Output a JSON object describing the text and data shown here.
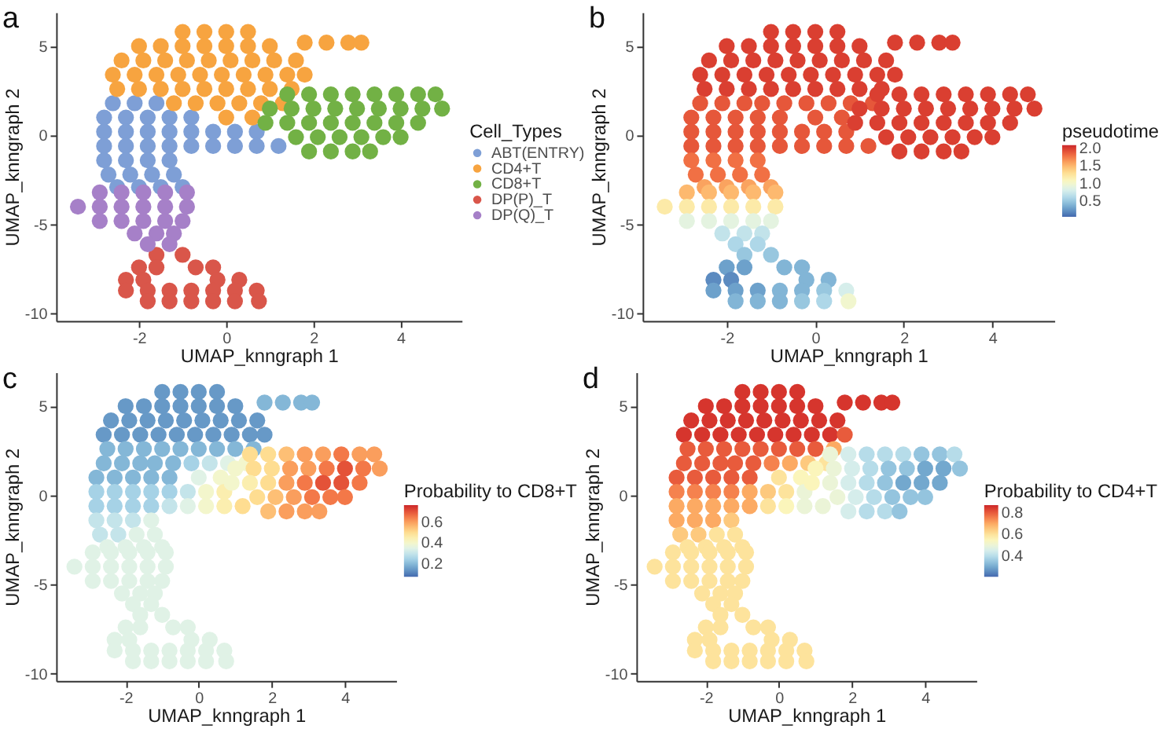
{
  "chart_data": [
    {
      "type": "scatter",
      "title": "a",
      "xlabel": "UMAP_knngraph 1",
      "ylabel": "UMAP_knngraph 2",
      "xlim": [
        -3.9,
        5.4
      ],
      "ylim": [
        -10.4,
        6.9
      ],
      "xticks": [
        -2,
        0,
        2,
        4
      ],
      "yticks": [
        -10,
        -5,
        0,
        5
      ],
      "marker": "circle",
      "legend": "right",
      "legend_title": "Cell_Types",
      "series": [
        {
          "name": "ABT(ENTRY)",
          "color": "#7e9fd6",
          "x": [
            -2.6,
            -2.1,
            -1.6,
            -2.8,
            -2.3,
            -1.8,
            -1.3,
            -0.8,
            -2.8,
            -2.3,
            -1.8,
            -1.3,
            -0.8,
            -0.3,
            0.2,
            0.7,
            -2.8,
            -2.3,
            -1.8,
            -1.3,
            -0.8,
            -0.3,
            0.2,
            0.7,
            1.2,
            -2.8,
            -2.3,
            -1.8,
            -1.3,
            -2.7,
            -2.2,
            -1.7,
            -1.2,
            -2.5,
            -2.0,
            -1.5,
            -1.0
          ],
          "values": [
            1.8,
            1.8,
            1.8,
            1.0,
            1.0,
            1.0,
            1.0,
            1.0,
            0.2,
            0.2,
            0.2,
            0.2,
            0.2,
            0.2,
            0.2,
            0.2,
            -0.6,
            -0.6,
            -0.6,
            -0.6,
            -0.6,
            -0.6,
            -0.6,
            -0.6,
            -0.6,
            -1.4,
            -1.4,
            -1.4,
            -1.4,
            -2.2,
            -2.2,
            -2.2,
            -2.2,
            -2.9,
            -2.9,
            -2.9,
            -2.9
          ]
        },
        {
          "name": "CD4+T",
          "color": "#f7a440",
          "x": [
            -1.0,
            -0.5,
            0.0,
            0.5,
            -2.0,
            -1.5,
            -1.0,
            -0.5,
            0.0,
            0.5,
            1.0,
            1.8,
            2.3,
            2.8,
            3.1,
            -2.4,
            -1.9,
            -1.4,
            -0.9,
            -0.4,
            0.1,
            0.6,
            1.1,
            1.6,
            -2.6,
            -2.1,
            -1.6,
            -1.1,
            -0.6,
            -0.1,
            0.4,
            0.9,
            1.4,
            1.8,
            -2.5,
            -2.0,
            -1.5,
            -1.0,
            -0.5,
            0.0,
            0.5,
            1.0,
            1.5,
            -1.2,
            -0.7,
            -0.2,
            0.3,
            0.8,
            1.3,
            0.0,
            0.6
          ],
          "values": [
            5.8,
            5.8,
            5.8,
            5.8,
            5.0,
            5.0,
            5.0,
            5.0,
            5.0,
            5.0,
            5.0,
            5.2,
            5.2,
            5.2,
            5.2,
            4.2,
            4.2,
            4.2,
            4.2,
            4.2,
            4.2,
            4.2,
            4.2,
            4.2,
            3.4,
            3.4,
            3.4,
            3.4,
            3.4,
            3.4,
            3.4,
            3.4,
            3.4,
            3.4,
            2.6,
            2.6,
            2.6,
            2.6,
            2.6,
            2.6,
            2.6,
            2.6,
            2.6,
            1.8,
            1.8,
            1.8,
            1.8,
            1.8,
            1.8,
            1.0,
            1.0
          ]
        },
        {
          "name": "CD8+T",
          "color": "#72b145",
          "x": [
            1.4,
            1.9,
            2.4,
            2.9,
            3.4,
            3.9,
            4.4,
            4.8,
            1.0,
            1.5,
            2.0,
            2.5,
            3.0,
            3.5,
            4.0,
            4.5,
            4.95,
            0.9,
            1.4,
            1.9,
            2.4,
            2.9,
            3.4,
            3.9,
            4.4,
            1.6,
            2.1,
            2.6,
            3.1,
            3.6,
            4.0,
            1.9,
            2.4,
            2.9,
            3.3
          ],
          "values": [
            2.3,
            2.3,
            2.3,
            2.3,
            2.3,
            2.3,
            2.3,
            2.3,
            1.5,
            1.5,
            1.5,
            1.5,
            1.5,
            1.5,
            1.5,
            1.5,
            1.5,
            0.7,
            0.7,
            0.7,
            0.7,
            0.7,
            0.7,
            0.7,
            0.7,
            -0.1,
            -0.1,
            -0.1,
            -0.1,
            -0.1,
            -0.1,
            -0.9,
            -0.9,
            -0.9,
            -0.9
          ]
        },
        {
          "name": "DP(P)_T",
          "color": "#d9564a",
          "x": [
            -1.6,
            -1.0,
            -2.0,
            -1.6,
            -0.7,
            -0.3,
            -2.3,
            -1.9,
            -0.2,
            0.3,
            -2.3,
            -1.8,
            -1.3,
            -0.8,
            -0.3,
            0.2,
            0.7,
            -1.8,
            -1.3,
            -0.8,
            -0.3,
            0.2,
            0.75
          ],
          "values": [
            -6.7,
            -6.7,
            -7.4,
            -7.4,
            -7.4,
            -7.4,
            -8.1,
            -8.1,
            -8.1,
            -8.1,
            -8.7,
            -8.7,
            -8.7,
            -8.7,
            -8.7,
            -8.7,
            -8.7,
            -9.3,
            -9.3,
            -9.3,
            -9.3,
            -9.3,
            -9.3
          ]
        },
        {
          "name": "DP(Q)_T",
          "color": "#a680c8",
          "x": [
            -2.9,
            -2.4,
            -1.9,
            -1.4,
            -0.9,
            -3.4,
            -2.9,
            -2.4,
            -1.9,
            -1.4,
            -0.9,
            -2.9,
            -2.4,
            -1.9,
            -1.4,
            -1.0,
            -2.1,
            -1.6,
            -1.2,
            -1.8,
            -1.3
          ],
          "values": [
            -3.2,
            -3.2,
            -3.2,
            -3.2,
            -3.2,
            -4.0,
            -4.0,
            -4.0,
            -4.0,
            -4.0,
            -4.0,
            -4.8,
            -4.8,
            -4.8,
            -4.8,
            -4.8,
            -5.5,
            -5.5,
            -5.5,
            -6.1,
            -6.1
          ]
        }
      ]
    },
    {
      "type": "scatter",
      "title": "b",
      "xlabel": "UMAP_knngraph 1",
      "ylabel": "UMAP_knngraph 2",
      "xlim": [
        -3.9,
        5.4
      ],
      "ylim": [
        -10.4,
        6.9
      ],
      "xticks": [
        -2,
        0,
        2,
        4
      ],
      "yticks": [
        -10,
        -5,
        0,
        5
      ],
      "marker": "circle",
      "clabel": "pseudotime",
      "clim": [
        0.05,
        2.1
      ],
      "cticks": [
        0.5,
        {
          "value": 1,
          "label": "1.0"
        },
        1.5,
        {
          "value": 2,
          "label": "2.0"
        }
      ],
      "x": [
        -1.0,
        -0.5,
        0.0,
        0.5,
        -2.0,
        -1.5,
        -1.0,
        -0.5,
        0.0,
        0.5,
        1.0,
        1.8,
        2.3,
        2.8,
        3.1,
        -2.4,
        -1.9,
        -1.4,
        -0.9,
        -0.4,
        0.1,
        0.6,
        1.1,
        1.6,
        -2.6,
        -2.1,
        -1.6,
        -1.1,
        -0.6,
        -0.1,
        0.4,
        0.9,
        1.4,
        1.8,
        -2.5,
        -2.0,
        -1.5,
        -1.0,
        -0.5,
        0.0,
        0.5,
        1.0,
        1.5,
        -1.2,
        -0.7,
        -0.2,
        0.3,
        0.8,
        1.3,
        0.0,
        0.6,
        -2.6,
        -2.1,
        -1.6,
        -2.8,
        -2.3,
        -1.8,
        -1.3,
        -0.8,
        -2.8,
        -2.3,
        -1.8,
        -1.3,
        -0.8,
        -0.3,
        0.2,
        0.7,
        -2.8,
        -2.3,
        -1.8,
        -1.3,
        -0.8,
        -0.3,
        0.2,
        0.7,
        1.2,
        -2.8,
        -2.3,
        -1.8,
        -1.3,
        -2.7,
        -2.2,
        -1.7,
        -1.2,
        -2.5,
        -2.0,
        -1.5,
        -1.0,
        1.4,
        1.9,
        2.4,
        2.9,
        3.4,
        3.9,
        4.4,
        4.8,
        1.0,
        1.5,
        2.0,
        2.5,
        3.0,
        3.5,
        4.0,
        4.5,
        4.95,
        0.9,
        1.4,
        1.9,
        2.4,
        2.9,
        3.4,
        3.9,
        4.4,
        1.6,
        2.1,
        2.6,
        3.1,
        3.6,
        4.0,
        1.9,
        2.4,
        2.9,
        3.3,
        -2.9,
        -2.4,
        -1.9,
        -1.4,
        -0.9,
        -3.4,
        -2.9,
        -2.4,
        -1.9,
        -1.4,
        -0.9,
        -2.9,
        -2.4,
        -1.9,
        -1.4,
        -1.0,
        -2.1,
        -1.6,
        -1.2,
        -1.8,
        -1.3,
        -1.6,
        -1.0,
        -2.0,
        -1.6,
        -0.7,
        -0.3,
        -2.3,
        -1.9,
        -0.2,
        0.3,
        -2.3,
        -1.8,
        -1.3,
        -0.8,
        -0.3,
        0.2,
        0.7,
        -1.8,
        -1.3,
        -0.8,
        -0.3,
        0.2,
        0.75
      ],
      "values": [
        5.8,
        5.8,
        5.8,
        5.8,
        5.0,
        5.0,
        5.0,
        5.0,
        5.0,
        5.0,
        5.0,
        5.2,
        5.2,
        5.2,
        5.2,
        4.2,
        4.2,
        4.2,
        4.2,
        4.2,
        4.2,
        4.2,
        4.2,
        4.2,
        3.4,
        3.4,
        3.4,
        3.4,
        3.4,
        3.4,
        3.4,
        3.4,
        3.4,
        3.4,
        2.6,
        2.6,
        2.6,
        2.6,
        2.6,
        2.6,
        2.6,
        2.6,
        2.6,
        1.8,
        1.8,
        1.8,
        1.8,
        1.8,
        1.8,
        1.0,
        1.0,
        1.8,
        1.8,
        1.8,
        1.0,
        1.0,
        1.0,
        1.0,
        1.0,
        0.2,
        0.2,
        0.2,
        0.2,
        0.2,
        0.2,
        0.2,
        0.2,
        -0.6,
        -0.6,
        -0.6,
        -0.6,
        -0.6,
        -0.6,
        -0.6,
        -0.6,
        -0.6,
        -1.4,
        -1.4,
        -1.4,
        -1.4,
        -2.2,
        -2.2,
        -2.2,
        -2.2,
        -2.9,
        -2.9,
        -2.9,
        -2.9,
        2.3,
        2.3,
        2.3,
        2.3,
        2.3,
        2.3,
        2.3,
        2.3,
        1.5,
        1.5,
        1.5,
        1.5,
        1.5,
        1.5,
        1.5,
        1.5,
        1.5,
        0.7,
        0.7,
        0.7,
        0.7,
        0.7,
        0.7,
        0.7,
        0.7,
        -0.1,
        -0.1,
        -0.1,
        -0.1,
        -0.1,
        -0.1,
        -0.9,
        -0.9,
        -0.9,
        -0.9,
        -3.2,
        -3.2,
        -3.2,
        -3.2,
        -3.2,
        -4.0,
        -4.0,
        -4.0,
        -4.0,
        -4.0,
        -4.0,
        -4.8,
        -4.8,
        -4.8,
        -4.8,
        -4.8,
        -5.5,
        -5.5,
        -5.5,
        -6.1,
        -6.1,
        -6.7,
        -6.7,
        -7.4,
        -7.4,
        -7.4,
        -7.4,
        -8.1,
        -8.1,
        -8.1,
        -8.1,
        -8.7,
        -8.7,
        -8.7,
        -8.7,
        -8.7,
        -8.7,
        -8.7,
        -9.3,
        -9.3,
        -9.3,
        -9.3,
        -9.3,
        -9.3
      ],
      "cvalues": [
        2.0,
        2.0,
        2.0,
        2.0,
        2.0,
        2.0,
        2.0,
        2.0,
        2.0,
        2.0,
        2.0,
        2.0,
        2.0,
        2.0,
        2.0,
        2.0,
        2.0,
        2.0,
        2.0,
        2.0,
        2.0,
        2.0,
        2.0,
        2.0,
        2.0,
        2.0,
        2.0,
        2.0,
        2.0,
        2.0,
        2.0,
        2.0,
        2.0,
        2.0,
        2.0,
        2.0,
        2.0,
        2.0,
        2.0,
        2.0,
        2.0,
        2.0,
        2.0,
        1.9,
        1.9,
        1.9,
        1.9,
        1.9,
        1.9,
        1.9,
        1.9,
        1.9,
        1.9,
        1.9,
        1.9,
        1.9,
        1.9,
        1.9,
        1.9,
        1.9,
        1.9,
        1.9,
        1.9,
        1.9,
        1.9,
        1.9,
        1.9,
        1.9,
        1.9,
        1.9,
        1.9,
        1.9,
        1.9,
        1.9,
        1.9,
        1.9,
        1.8,
        1.8,
        1.8,
        1.8,
        1.8,
        1.8,
        1.8,
        1.8,
        1.6,
        1.6,
        1.6,
        1.6,
        2.0,
        2.0,
        2.0,
        2.0,
        2.0,
        2.0,
        2.0,
        2.0,
        2.0,
        2.0,
        2.0,
        2.0,
        2.0,
        2.0,
        2.0,
        2.0,
        2.0,
        2.0,
        2.0,
        2.0,
        2.0,
        2.0,
        2.0,
        2.0,
        2.0,
        2.0,
        2.0,
        2.0,
        2.0,
        2.0,
        2.0,
        2.0,
        2.0,
        2.0,
        2.0,
        1.5,
        1.5,
        1.5,
        1.5,
        1.5,
        1.2,
        1.2,
        1.2,
        1.2,
        1.2,
        1.2,
        0.9,
        0.9,
        0.9,
        0.9,
        0.9,
        0.7,
        0.7,
        0.7,
        0.6,
        0.6,
        0.5,
        0.5,
        0.3,
        0.3,
        0.4,
        0.4,
        0.2,
        0.2,
        0.4,
        0.4,
        0.3,
        0.3,
        0.3,
        0.4,
        0.4,
        0.5,
        0.8,
        0.4,
        0.4,
        0.4,
        0.5,
        0.6,
        1.0
      ]
    },
    {
      "type": "scatter",
      "title": "c",
      "xlabel": "UMAP_knngraph 1",
      "ylabel": "UMAP_knngraph 2",
      "xlim": [
        -3.9,
        5.4
      ],
      "ylim": [
        -10.4,
        6.9
      ],
      "xticks": [
        -2,
        0,
        2,
        4
      ],
      "yticks": [
        -10,
        -5,
        0,
        5
      ],
      "marker": "circle",
      "clabel": "Probability to CD8+T",
      "clim": [
        0.08,
        0.76
      ],
      "cticks": [
        0.2,
        0.4,
        0.6
      ],
      "x": [
        -1.0,
        -0.5,
        0.0,
        0.5,
        -2.0,
        -1.5,
        -1.0,
        -0.5,
        0.0,
        0.5,
        1.0,
        1.8,
        2.3,
        2.8,
        3.1,
        -2.4,
        -1.9,
        -1.4,
        -0.9,
        -0.4,
        0.1,
        0.6,
        1.1,
        1.6,
        -2.6,
        -2.1,
        -1.6,
        -1.1,
        -0.6,
        -0.1,
        0.4,
        0.9,
        1.4,
        1.8,
        -2.5,
        -2.0,
        -1.5,
        -1.0,
        -0.5,
        0.0,
        0.5,
        1.0,
        1.5,
        -1.2,
        -0.7,
        -0.2,
        0.3,
        0.8,
        1.3,
        0.0,
        0.6,
        -2.6,
        -2.1,
        -1.6,
        -2.8,
        -2.3,
        -1.8,
        -1.3,
        -0.8,
        -2.8,
        -2.3,
        -1.8,
        -1.3,
        -0.8,
        -0.3,
        0.2,
        0.7,
        -2.8,
        -2.3,
        -1.8,
        -1.3,
        -0.8,
        -0.3,
        0.2,
        0.7,
        1.2,
        -2.8,
        -2.3,
        -1.8,
        -1.3,
        -2.7,
        -2.2,
        -1.7,
        -1.2,
        -2.5,
        -2.0,
        -1.5,
        -1.0,
        1.4,
        1.9,
        2.4,
        2.9,
        3.4,
        3.9,
        4.4,
        4.8,
        1.0,
        1.5,
        2.0,
        2.5,
        3.0,
        3.5,
        4.0,
        4.5,
        4.95,
        0.9,
        1.4,
        1.9,
        2.4,
        2.9,
        3.4,
        3.9,
        4.4,
        1.6,
        2.1,
        2.6,
        3.1,
        3.6,
        4.0,
        1.9,
        2.4,
        2.9,
        3.3,
        -2.9,
        -2.4,
        -1.9,
        -1.4,
        -0.9,
        -3.4,
        -2.9,
        -2.4,
        -1.9,
        -1.4,
        -0.9,
        -2.9,
        -2.4,
        -1.9,
        -1.4,
        -1.0,
        -2.1,
        -1.6,
        -1.2,
        -1.8,
        -1.3,
        -1.6,
        -1.0,
        -2.0,
        -1.6,
        -0.7,
        -0.3,
        -2.3,
        -1.9,
        -0.2,
        0.3,
        -2.3,
        -1.8,
        -1.3,
        -0.8,
        -0.3,
        0.2,
        0.7,
        -1.8,
        -1.3,
        -0.8,
        -0.3,
        0.2,
        0.75
      ],
      "values": [
        5.8,
        5.8,
        5.8,
        5.8,
        5.0,
        5.0,
        5.0,
        5.0,
        5.0,
        5.0,
        5.0,
        5.2,
        5.2,
        5.2,
        5.2,
        4.2,
        4.2,
        4.2,
        4.2,
        4.2,
        4.2,
        4.2,
        4.2,
        4.2,
        3.4,
        3.4,
        3.4,
        3.4,
        3.4,
        3.4,
        3.4,
        3.4,
        3.4,
        3.4,
        2.6,
        2.6,
        2.6,
        2.6,
        2.6,
        2.6,
        2.6,
        2.6,
        2.6,
        1.8,
        1.8,
        1.8,
        1.8,
        1.8,
        1.8,
        1.0,
        1.0,
        1.8,
        1.8,
        1.8,
        1.0,
        1.0,
        1.0,
        1.0,
        1.0,
        0.2,
        0.2,
        0.2,
        0.2,
        0.2,
        0.2,
        0.2,
        0.2,
        -0.6,
        -0.6,
        -0.6,
        -0.6,
        -0.6,
        -0.6,
        -0.6,
        -0.6,
        -0.6,
        -1.4,
        -1.4,
        -1.4,
        -1.4,
        -2.2,
        -2.2,
        -2.2,
        -2.2,
        -2.9,
        -2.9,
        -2.9,
        -2.9,
        2.3,
        2.3,
        2.3,
        2.3,
        2.3,
        2.3,
        2.3,
        2.3,
        1.5,
        1.5,
        1.5,
        1.5,
        1.5,
        1.5,
        1.5,
        1.5,
        1.5,
        0.7,
        0.7,
        0.7,
        0.7,
        0.7,
        0.7,
        0.7,
        0.7,
        -0.1,
        -0.1,
        -0.1,
        -0.1,
        -0.1,
        -0.1,
        -0.9,
        -0.9,
        -0.9,
        -0.9,
        -3.2,
        -3.2,
        -3.2,
        -3.2,
        -3.2,
        -4.0,
        -4.0,
        -4.0,
        -4.0,
        -4.0,
        -4.0,
        -4.8,
        -4.8,
        -4.8,
        -4.8,
        -4.8,
        -5.5,
        -5.5,
        -5.5,
        -6.1,
        -6.1,
        -6.7,
        -6.7,
        -7.4,
        -7.4,
        -7.4,
        -7.4,
        -8.1,
        -8.1,
        -8.1,
        -8.1,
        -8.7,
        -8.7,
        -8.7,
        -8.7,
        -8.7,
        -8.7,
        -8.7,
        -9.3,
        -9.3,
        -9.3,
        -9.3,
        -9.3,
        -9.3
      ],
      "cvalues": [
        0.15,
        0.15,
        0.15,
        0.15,
        0.15,
        0.15,
        0.15,
        0.15,
        0.15,
        0.15,
        0.15,
        0.2,
        0.2,
        0.2,
        0.2,
        0.15,
        0.15,
        0.15,
        0.15,
        0.15,
        0.15,
        0.15,
        0.15,
        0.15,
        0.15,
        0.15,
        0.15,
        0.15,
        0.15,
        0.15,
        0.15,
        0.15,
        0.15,
        0.15,
        0.2,
        0.2,
        0.2,
        0.2,
        0.2,
        0.2,
        0.2,
        0.2,
        0.2,
        0.2,
        0.2,
        0.25,
        0.3,
        0.35,
        0.4,
        0.35,
        0.4,
        0.2,
        0.2,
        0.2,
        0.2,
        0.2,
        0.2,
        0.2,
        0.2,
        0.25,
        0.25,
        0.25,
        0.25,
        0.25,
        0.3,
        0.4,
        0.45,
        0.25,
        0.25,
        0.25,
        0.25,
        0.3,
        0.35,
        0.4,
        0.45,
        0.5,
        0.3,
        0.3,
        0.3,
        0.35,
        0.3,
        0.3,
        0.35,
        0.35,
        0.35,
        0.35,
        0.35,
        0.35,
        0.5,
        0.5,
        0.55,
        0.6,
        0.6,
        0.65,
        0.6,
        0.6,
        0.4,
        0.5,
        0.5,
        0.6,
        0.6,
        0.65,
        0.7,
        0.65,
        0.6,
        0.4,
        0.45,
        0.5,
        0.6,
        0.65,
        0.7,
        0.7,
        0.65,
        0.5,
        0.55,
        0.6,
        0.65,
        0.65,
        0.65,
        0.55,
        0.6,
        0.6,
        0.6,
        0.35,
        0.35,
        0.35,
        0.35,
        0.35,
        0.35,
        0.35,
        0.35,
        0.35,
        0.35,
        0.35,
        0.35,
        0.35,
        0.35,
        0.35,
        0.35,
        0.35,
        0.35,
        0.35,
        0.35,
        0.35,
        0.35,
        0.35,
        0.35,
        0.35,
        0.35,
        0.35,
        0.35,
        0.35,
        0.35,
        0.35,
        0.35,
        0.35,
        0.35,
        0.35,
        0.35,
        0.35,
        0.35,
        0.35,
        0.35,
        0.35,
        0.35,
        0.35,
        0.35
      ]
    },
    {
      "type": "scatter",
      "title": "d",
      "xlabel": "UMAP_knngraph 1",
      "ylabel": "UMAP_knngraph 2",
      "xlim": [
        -3.9,
        5.4
      ],
      "ylim": [
        -10.4,
        6.9
      ],
      "xticks": [
        -2,
        0,
        2,
        4
      ],
      "yticks": [
        -10,
        -5,
        0,
        5
      ],
      "marker": "circle",
      "clabel": "Probability to CD4+T",
      "clim": [
        0.21,
        0.87
      ],
      "cticks": [
        0.4,
        0.6,
        0.8
      ],
      "x": [
        -1.0,
        -0.5,
        0.0,
        0.5,
        -2.0,
        -1.5,
        -1.0,
        -0.5,
        0.0,
        0.5,
        1.0,
        1.8,
        2.3,
        2.8,
        3.1,
        -2.4,
        -1.9,
        -1.4,
        -0.9,
        -0.4,
        0.1,
        0.6,
        1.1,
        1.6,
        -2.6,
        -2.1,
        -1.6,
        -1.1,
        -0.6,
        -0.1,
        0.4,
        0.9,
        1.4,
        1.8,
        -2.5,
        -2.0,
        -1.5,
        -1.0,
        -0.5,
        0.0,
        0.5,
        1.0,
        1.5,
        -1.2,
        -0.7,
        -0.2,
        0.3,
        0.8,
        1.3,
        0.0,
        0.6,
        -2.6,
        -2.1,
        -1.6,
        -2.8,
        -2.3,
        -1.8,
        -1.3,
        -0.8,
        -2.8,
        -2.3,
        -1.8,
        -1.3,
        -0.8,
        -0.3,
        0.2,
        0.7,
        -2.8,
        -2.3,
        -1.8,
        -1.3,
        -0.8,
        -0.3,
        0.2,
        0.7,
        1.2,
        -2.8,
        -2.3,
        -1.8,
        -1.3,
        -2.7,
        -2.2,
        -1.7,
        -1.2,
        -2.5,
        -2.0,
        -1.5,
        -1.0,
        1.4,
        1.9,
        2.4,
        2.9,
        3.4,
        3.9,
        4.4,
        4.8,
        1.0,
        1.5,
        2.0,
        2.5,
        3.0,
        3.5,
        4.0,
        4.5,
        4.95,
        0.9,
        1.4,
        1.9,
        2.4,
        2.9,
        3.4,
        3.9,
        4.4,
        1.6,
        2.1,
        2.6,
        3.1,
        3.6,
        4.0,
        1.9,
        2.4,
        2.9,
        3.3,
        -2.9,
        -2.4,
        -1.9,
        -1.4,
        -0.9,
        -3.4,
        -2.9,
        -2.4,
        -1.9,
        -1.4,
        -0.9,
        -2.9,
        -2.4,
        -1.9,
        -1.4,
        -1.0,
        -2.1,
        -1.6,
        -1.2,
        -1.8,
        -1.3,
        -1.6,
        -1.0,
        -2.0,
        -1.6,
        -0.7,
        -0.3,
        -2.3,
        -1.9,
        -0.2,
        0.3,
        -2.3,
        -1.8,
        -1.3,
        -0.8,
        -0.3,
        0.2,
        0.7,
        -1.8,
        -1.3,
        -0.8,
        -0.3,
        0.2,
        0.75
      ],
      "values": [
        5.8,
        5.8,
        5.8,
        5.8,
        5.0,
        5.0,
        5.0,
        5.0,
        5.0,
        5.0,
        5.0,
        5.2,
        5.2,
        5.2,
        5.2,
        4.2,
        4.2,
        4.2,
        4.2,
        4.2,
        4.2,
        4.2,
        4.2,
        4.2,
        3.4,
        3.4,
        3.4,
        3.4,
        3.4,
        3.4,
        3.4,
        3.4,
        3.4,
        3.4,
        2.6,
        2.6,
        2.6,
        2.6,
        2.6,
        2.6,
        2.6,
        2.6,
        2.6,
        1.8,
        1.8,
        1.8,
        1.8,
        1.8,
        1.8,
        1.0,
        1.0,
        1.8,
        1.8,
        1.8,
        1.0,
        1.0,
        1.0,
        1.0,
        1.0,
        0.2,
        0.2,
        0.2,
        0.2,
        0.2,
        0.2,
        0.2,
        0.2,
        -0.6,
        -0.6,
        -0.6,
        -0.6,
        -0.6,
        -0.6,
        -0.6,
        -0.6,
        -0.6,
        -1.4,
        -1.4,
        -1.4,
        -1.4,
        -2.2,
        -2.2,
        -2.2,
        -2.2,
        -2.9,
        -2.9,
        -2.9,
        -2.9,
        2.3,
        2.3,
        2.3,
        2.3,
        2.3,
        2.3,
        2.3,
        2.3,
        1.5,
        1.5,
        1.5,
        1.5,
        1.5,
        1.5,
        1.5,
        1.5,
        1.5,
        0.7,
        0.7,
        0.7,
        0.7,
        0.7,
        0.7,
        0.7,
        0.7,
        -0.1,
        -0.1,
        -0.1,
        -0.1,
        -0.1,
        -0.1,
        -0.9,
        -0.9,
        -0.9,
        -0.9,
        -3.2,
        -3.2,
        -3.2,
        -3.2,
        -3.2,
        -4.0,
        -4.0,
        -4.0,
        -4.0,
        -4.0,
        -4.0,
        -4.8,
        -4.8,
        -4.8,
        -4.8,
        -4.8,
        -5.5,
        -5.5,
        -5.5,
        -6.1,
        -6.1,
        -6.7,
        -6.7,
        -7.4,
        -7.4,
        -7.4,
        -7.4,
        -8.1,
        -8.1,
        -8.1,
        -8.1,
        -8.7,
        -8.7,
        -8.7,
        -8.7,
        -8.7,
        -8.7,
        -8.7,
        -9.3,
        -9.3,
        -9.3,
        -9.3,
        -9.3,
        -9.3
      ],
      "cvalues": [
        0.85,
        0.85,
        0.85,
        0.85,
        0.85,
        0.85,
        0.85,
        0.85,
        0.85,
        0.85,
        0.85,
        0.85,
        0.85,
        0.85,
        0.85,
        0.85,
        0.85,
        0.85,
        0.85,
        0.85,
        0.85,
        0.85,
        0.85,
        0.85,
        0.85,
        0.85,
        0.85,
        0.85,
        0.85,
        0.85,
        0.85,
        0.85,
        0.85,
        0.8,
        0.8,
        0.8,
        0.8,
        0.8,
        0.8,
        0.8,
        0.8,
        0.8,
        0.7,
        0.8,
        0.8,
        0.75,
        0.7,
        0.65,
        0.6,
        0.6,
        0.55,
        0.8,
        0.8,
        0.8,
        0.8,
        0.8,
        0.8,
        0.8,
        0.8,
        0.75,
        0.75,
        0.75,
        0.75,
        0.7,
        0.65,
        0.6,
        0.5,
        0.7,
        0.7,
        0.7,
        0.7,
        0.7,
        0.6,
        0.55,
        0.5,
        0.5,
        0.7,
        0.7,
        0.7,
        0.65,
        0.65,
        0.65,
        0.6,
        0.6,
        0.6,
        0.6,
        0.6,
        0.6,
        0.5,
        0.45,
        0.4,
        0.4,
        0.4,
        0.35,
        0.35,
        0.4,
        0.55,
        0.5,
        0.45,
        0.4,
        0.35,
        0.35,
        0.3,
        0.3,
        0.35,
        0.55,
        0.5,
        0.45,
        0.4,
        0.35,
        0.3,
        0.3,
        0.3,
        0.5,
        0.45,
        0.4,
        0.35,
        0.35,
        0.35,
        0.45,
        0.4,
        0.4,
        0.35,
        0.6,
        0.6,
        0.6,
        0.6,
        0.6,
        0.6,
        0.6,
        0.6,
        0.6,
        0.6,
        0.6,
        0.6,
        0.6,
        0.6,
        0.6,
        0.6,
        0.6,
        0.6,
        0.6,
        0.6,
        0.6,
        0.6,
        0.6,
        0.6,
        0.6,
        0.6,
        0.6,
        0.6,
        0.6,
        0.6,
        0.6,
        0.6,
        0.6,
        0.6,
        0.6,
        0.6,
        0.6,
        0.6,
        0.6,
        0.6,
        0.6,
        0.6,
        0.6,
        0.6
      ]
    }
  ]
}
